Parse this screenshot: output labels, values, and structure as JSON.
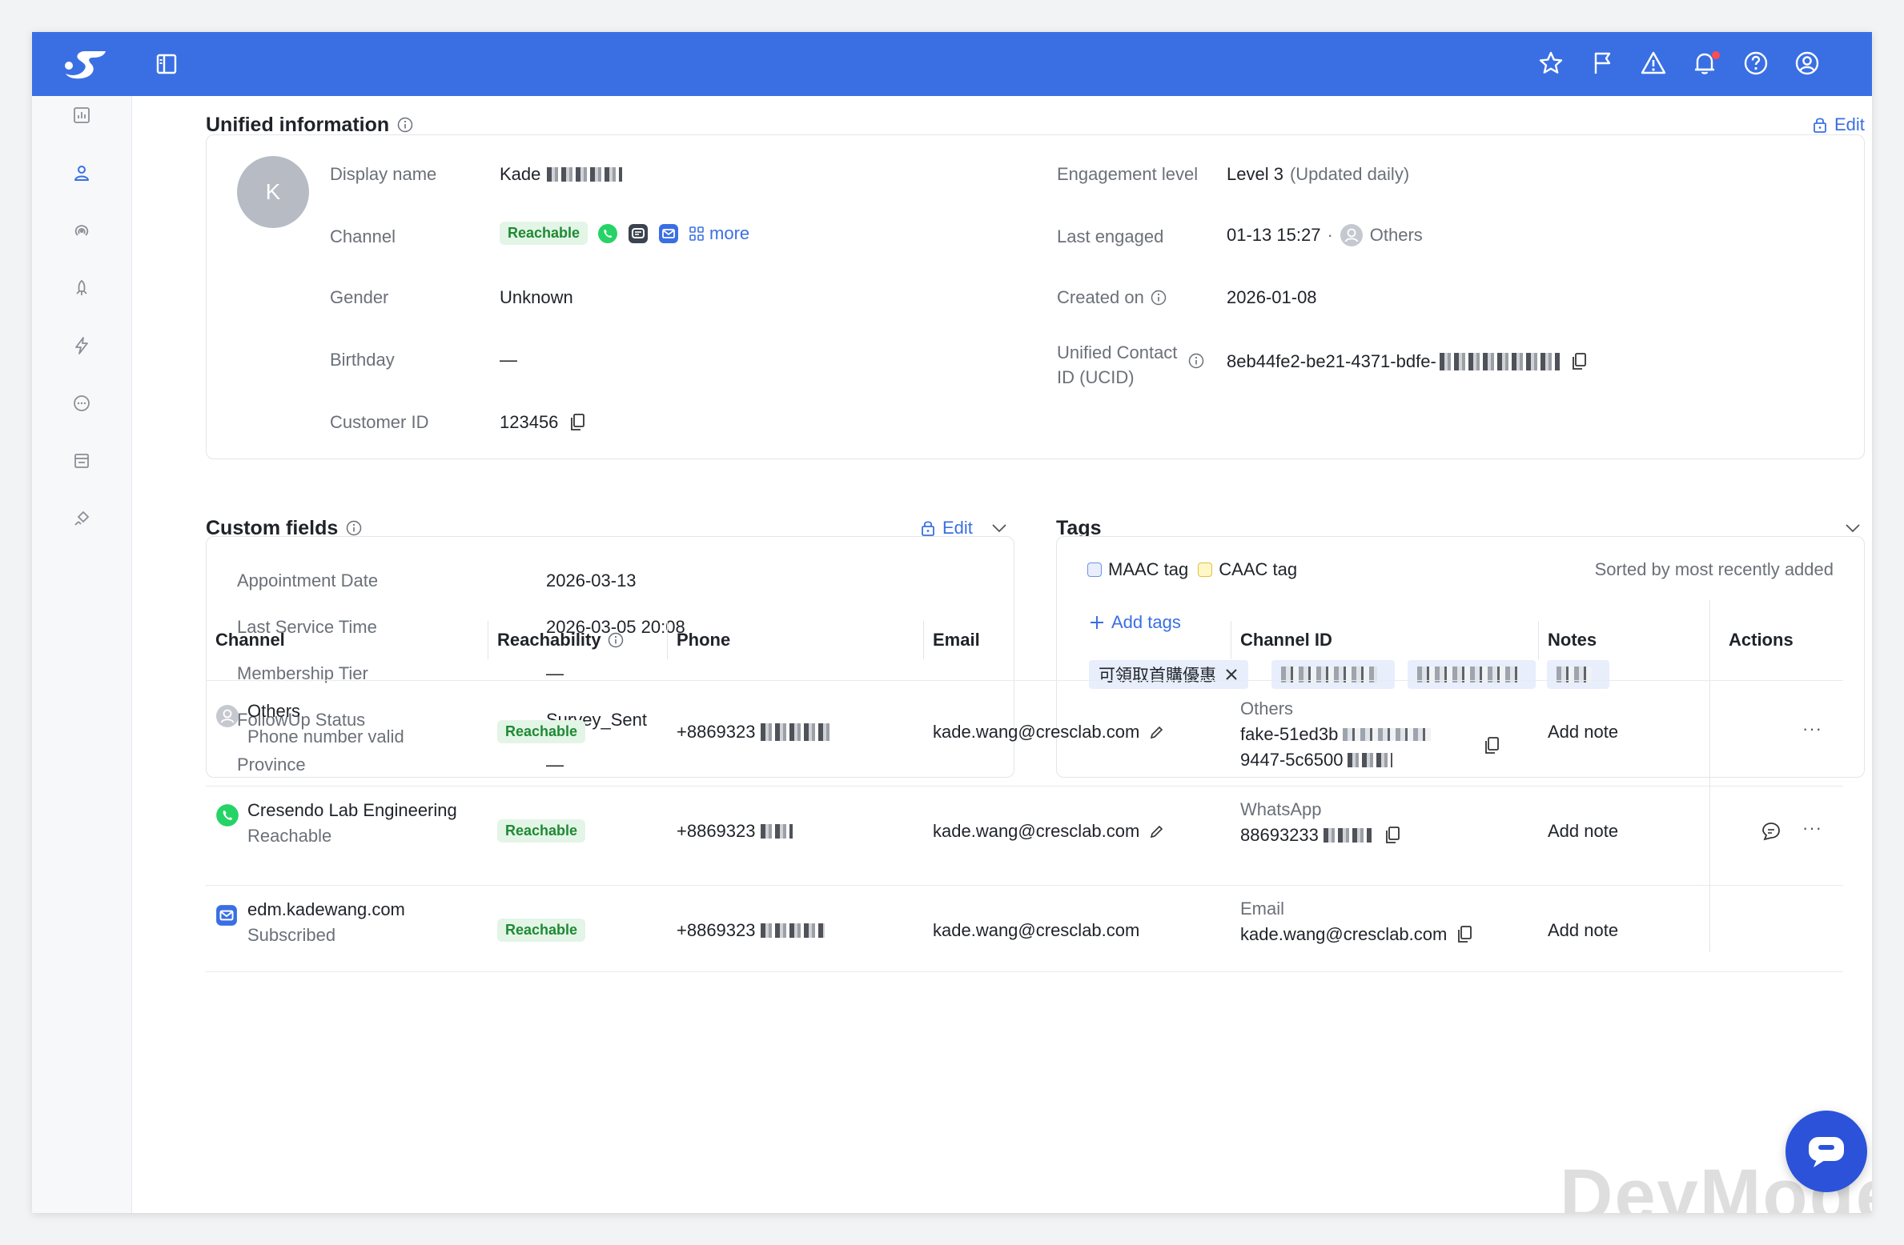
{
  "topbar": {
    "icons": [
      "star-icon",
      "flag-icon",
      "alert-icon",
      "bell-icon",
      "help-icon",
      "account-icon"
    ]
  },
  "sidebar": {
    "items": [
      "chart-icon",
      "user-icon",
      "broadcast-icon",
      "rocket-icon",
      "bolt-icon",
      "chat-icon",
      "store-icon",
      "plug-icon"
    ]
  },
  "unified": {
    "title": "Unified information",
    "edit_label": "Edit",
    "avatar_initial": "K",
    "display_name_label": "Display name",
    "display_name_value": "Kade",
    "channel_label": "Channel",
    "channel_badge": "Reachable",
    "more_label": "more",
    "gender_label": "Gender",
    "gender_value": "Unknown",
    "birthday_label": "Birthday",
    "birthday_value": "—",
    "customer_id_label": "Customer ID",
    "customer_id_value": "123456",
    "engagement_label": "Engagement level",
    "engagement_value": "Level 3",
    "engagement_note": "(Updated daily)",
    "last_engaged_label": "Last engaged",
    "last_engaged_value": "01-13 15:27",
    "last_engaged_sep": "·",
    "last_engaged_by": "Others",
    "created_label": "Created on",
    "created_value": "2026-01-08",
    "ucid_label_line1": "Unified Contact",
    "ucid_label_line2": "ID (UCID)",
    "ucid_value": "8eb44fe2-be21-4371-bdfe-"
  },
  "custom_fields": {
    "title": "Custom fields",
    "edit_label": "Edit",
    "rows": [
      {
        "label": "Appointment Date",
        "value": "2026-03-13"
      },
      {
        "label": "Last Service Time",
        "value": "2026-03-05 20:08"
      },
      {
        "label": "Membership Tier",
        "value": "—"
      },
      {
        "label": "FollowUp Status",
        "value": "Survey_Sent"
      },
      {
        "label": "Province",
        "value": "—"
      }
    ]
  },
  "tags": {
    "title": "Tags",
    "maac_label": "MAAC tag",
    "caac_label": "CAAC tag",
    "sort_note": "Sorted by most recently added",
    "add_label": "Add tags",
    "first_tag": "可領取首購優惠"
  },
  "table": {
    "headers": {
      "channel": "Channel",
      "reachability": "Reachability",
      "phone": "Phone",
      "email": "Email",
      "channel_id": "Channel ID",
      "notes": "Notes",
      "actions": "Actions"
    },
    "rows": [
      {
        "channel_name": "Others",
        "channel_sub": "Phone number valid",
        "reach": "Reachable",
        "phone": "+8869323",
        "email": "kade.wang@cresclab.com",
        "cid_type": "Others",
        "cid_line1": "fake-51ed3b",
        "cid_line2": "9447-5c6500",
        "note": "Add note",
        "more": "···"
      },
      {
        "channel_name": "Cresendo Lab Engineering",
        "channel_sub": "Reachable",
        "reach": "Reachable",
        "phone": "+8869323",
        "email": "kade.wang@cresclab.com",
        "cid_type": "WhatsApp",
        "cid_line1": "88693233",
        "note": "Add note",
        "more": "···"
      },
      {
        "channel_name": "edm.kadewang.com",
        "channel_sub": "Subscribed",
        "reach": "Reachable",
        "phone": "+8869323",
        "email": "kade.wang@cresclab.com",
        "cid_type": "Email",
        "cid_line1": "kade.wang@cresclab.com",
        "note": "Add note"
      }
    ]
  },
  "watermark": "DevMode",
  "colors": {
    "brand": "#3a6fe3",
    "reachable_bg": "#e3f5e6",
    "reachable_text": "#1e8a34",
    "whatsapp": "#25d366"
  }
}
